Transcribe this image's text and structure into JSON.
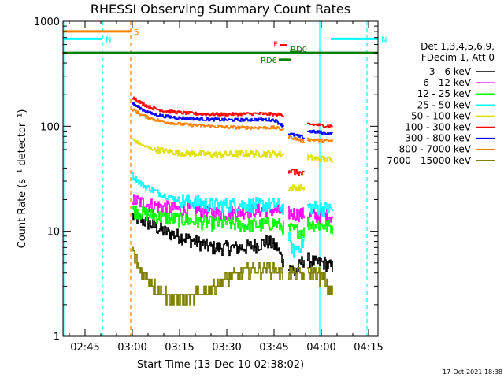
{
  "chart_data": {
    "type": "line",
    "title": "RHESSI Observing Summary Count Rates",
    "xlabel": "Start Time (13-Dec-10 02:38:02)",
    "ylabel": "Count Rate (s⁻¹ detector⁻¹)",
    "yscale": "log",
    "ylim": [
      1,
      1000
    ],
    "xlim_minutes": [
      0,
      100
    ],
    "x_ticks": [
      {
        "min": 7,
        "label": "02:45"
      },
      {
        "min": 22,
        "label": "03:00"
      },
      {
        "min": 37,
        "label": "03:15"
      },
      {
        "min": 52,
        "label": "03:30"
      },
      {
        "min": 67,
        "label": "03:45"
      },
      {
        "min": 82,
        "label": "04:00"
      },
      {
        "min": 97,
        "label": "04:15"
      }
    ],
    "y_ticks": [
      {
        "value": 1,
        "label": "1"
      },
      {
        "value": 10,
        "label": "10"
      },
      {
        "value": 100,
        "label": "100"
      },
      {
        "value": 1000,
        "label": "1000"
      }
    ],
    "legend_header": [
      "Det 1,3,4,5,6,9,",
      "FDecim 1, Att 0"
    ],
    "legend_position": "right",
    "footer_stamp": "17-Oct-2021 18:38",
    "flag_bars": [
      {
        "label": "S",
        "color": "#ff8000",
        "start": 0,
        "end": 21.5,
        "value": 800
      },
      {
        "label": "N",
        "color": "#00ffff",
        "start": 0,
        "end": 12.5,
        "value": 680
      },
      {
        "label": "N",
        "color": "#00ffff",
        "start": 85,
        "end": 100,
        "value": 680
      },
      {
        "label": "",
        "color": "#008000",
        "start": 0,
        "end": 100,
        "value": 500
      },
      {
        "label": "F",
        "color": "#ff0000",
        "start": 69,
        "end": 71,
        "value": 590
      },
      {
        "label": "RD0",
        "color": "#008000",
        "start": 72,
        "end": 76,
        "value": 510
      },
      {
        "label": "RD6",
        "color": "#008000",
        "start": 68.5,
        "end": 72.5,
        "value": 430
      }
    ],
    "vertical_lines": [
      {
        "min": 0.2,
        "color": "#00ffff",
        "style": "solid"
      },
      {
        "min": 12.5,
        "color": "#00ffff",
        "style": "dashed"
      },
      {
        "min": 21.5,
        "color": "#ff8000",
        "style": "dashed"
      },
      {
        "min": 81.5,
        "color": "#00ffff",
        "style": "solid"
      },
      {
        "min": 96.5,
        "color": "#00ffff",
        "style": "dashed"
      }
    ],
    "data_segments": [
      [
        22,
        70
      ],
      [
        71.5,
        76.5
      ],
      [
        77.5,
        85.5
      ]
    ],
    "series": [
      {
        "name": "3 - 6 keV",
        "color": "#000000",
        "x": [
          22,
          27,
          32,
          37,
          42,
          47,
          52,
          57,
          62,
          65,
          68,
          70,
          71.5,
          73.5,
          76.5,
          77.5,
          80,
          83,
          85.5
        ],
        "values": [
          14,
          12,
          10,
          9,
          8,
          7,
          7,
          7,
          7.5,
          8,
          7,
          5,
          5,
          4,
          5.5,
          5.5,
          5,
          5,
          4.5
        ]
      },
      {
        "name": "6 - 12 keV",
        "color": "#ff00ff",
        "x": [
          22,
          27,
          32,
          37,
          42,
          47,
          52,
          57,
          62,
          67,
          70,
          71.5,
          76.5,
          77.5,
          85.5
        ],
        "values": [
          20,
          18,
          17,
          16,
          16,
          15,
          15,
          15.5,
          16,
          16,
          15,
          15,
          14.5,
          14,
          14
        ]
      },
      {
        "name": "12 - 25 keV",
        "color": "#00ff00",
        "x": [
          22,
          27,
          32,
          37,
          42,
          47,
          52,
          57,
          62,
          67,
          70,
          71.5,
          76.5,
          77.5,
          85.5
        ],
        "values": [
          16,
          14.5,
          13.5,
          13,
          12.5,
          12,
          12,
          11.5,
          11.5,
          12,
          11,
          10.5,
          10,
          12,
          11
        ]
      },
      {
        "name": "25 - 50 keV",
        "color": "#00ffff",
        "x": [
          22,
          25,
          28,
          32,
          37,
          42,
          47,
          52,
          57,
          62,
          67,
          70,
          71.5,
          73,
          76.5,
          77.5,
          80,
          85.5
        ],
        "values": [
          34,
          28,
          25,
          22,
          20,
          19,
          18,
          18,
          18,
          18,
          18,
          17,
          9,
          6.5,
          8,
          17,
          17,
          16
        ]
      },
      {
        "name": "50 - 100 keV",
        "color": "#e0e000",
        "x": [
          22,
          25,
          28,
          32,
          37,
          42,
          47,
          52,
          57,
          62,
          67,
          70,
          71.5,
          76.5,
          77.5,
          85.5
        ],
        "values": [
          75,
          66,
          61,
          58,
          56,
          55,
          54,
          54,
          55,
          55,
          55,
          54,
          26,
          26,
          50,
          48
        ]
      },
      {
        "name": "100 - 300 keV",
        "color": "#ff0000",
        "x": [
          22,
          25,
          28,
          32,
          37,
          42,
          47,
          52,
          57,
          62,
          67,
          70,
          71.5,
          76.5,
          77.5,
          85.5
        ],
        "values": [
          190,
          165,
          150,
          140,
          135,
          132,
          130,
          130,
          131,
          132,
          130,
          128,
          38,
          35,
          105,
          100
        ]
      },
      {
        "name": "300 - 800 keV",
        "color": "#0000ff",
        "x": [
          22,
          25,
          28,
          32,
          37,
          42,
          47,
          52,
          57,
          62,
          67,
          70,
          71.5,
          76.5,
          77.5,
          85.5
        ],
        "values": [
          165,
          145,
          132,
          125,
          120,
          118,
          116,
          115,
          115,
          116,
          115,
          100,
          85,
          78,
          90,
          85
        ]
      },
      {
        "name": "800 - 7000 keV",
        "color": "#ff8000",
        "x": [
          22,
          25,
          28,
          32,
          37,
          42,
          47,
          52,
          57,
          62,
          67,
          70,
          71.5,
          76.5,
          77.5,
          85.5
        ],
        "values": [
          145,
          128,
          118,
          110,
          105,
          102,
          100,
          98,
          97,
          97,
          97,
          93,
          80,
          72,
          75,
          72
        ]
      },
      {
        "name": "7000 - 15000 keV",
        "color": "#808000",
        "x": [
          22,
          24,
          27,
          30,
          34,
          39,
          44,
          49,
          54,
          59,
          64,
          68,
          70,
          71.5,
          76.5,
          77.5,
          80,
          83,
          85.5
        ],
        "values": [
          6.5,
          4.5,
          3.5,
          2.8,
          2.3,
          2.3,
          2.6,
          3.2,
          3.8,
          4.2,
          4.5,
          4.3,
          4,
          4,
          3.8,
          4,
          4,
          3.5,
          2.5
        ]
      }
    ]
  }
}
